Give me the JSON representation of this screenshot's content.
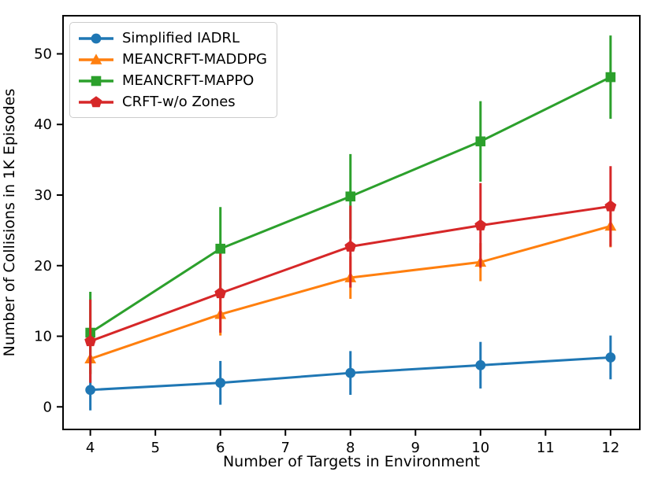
{
  "chart_data": {
    "type": "line",
    "title": "",
    "xlabel": "Number of Targets in Environment",
    "ylabel": "Number of Collisions in 1K Episodes",
    "x": [
      4,
      6,
      8,
      10,
      12
    ],
    "xticks": [
      4,
      5,
      6,
      7,
      8,
      9,
      10,
      11,
      12
    ],
    "yticks": [
      0,
      10,
      20,
      30,
      40,
      50
    ],
    "xlim": [
      3.58,
      12.45
    ],
    "ylim": [
      -3.2,
      55.4
    ],
    "grid": false,
    "legend_position": "upper left",
    "series": [
      {
        "name": "Simplified IADRL",
        "color": "#1f77b4",
        "marker": "circle",
        "values": [
          2.4,
          3.4,
          4.8,
          5.9,
          7.0
        ],
        "errors": [
          2.9,
          3.1,
          3.1,
          3.3,
          3.1
        ]
      },
      {
        "name": "MEANCRFT-MADDPG",
        "color": "#ff7f0e",
        "marker": "triangle",
        "values": [
          6.8,
          13.1,
          18.3,
          20.5,
          25.6
        ],
        "errors": [
          2.2,
          3.0,
          3.0,
          2.7,
          3.0
        ]
      },
      {
        "name": "MEANCRFT-MAPPO",
        "color": "#2ca02c",
        "marker": "square",
        "values": [
          10.5,
          22.4,
          29.8,
          37.6,
          46.7
        ],
        "errors": [
          5.8,
          5.9,
          6.0,
          5.7,
          5.9
        ]
      },
      {
        "name": "CRFT-w/o Zones",
        "color": "#d62728",
        "marker": "pentagon",
        "values": [
          9.3,
          16.1,
          22.7,
          25.7,
          28.4
        ],
        "errors": [
          5.9,
          5.6,
          5.8,
          6.0,
          5.7
        ]
      }
    ]
  }
}
